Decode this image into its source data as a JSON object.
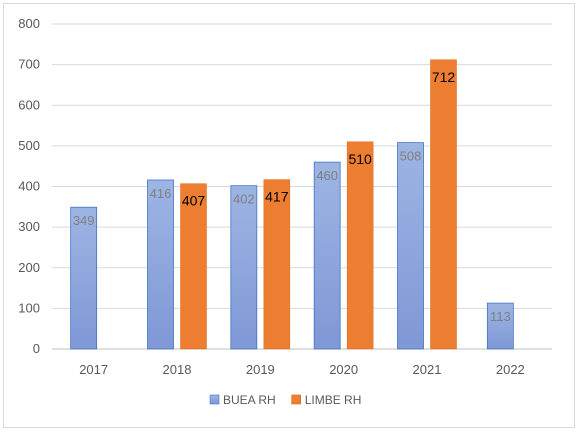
{
  "chart_data": {
    "type": "bar",
    "categories": [
      "2017",
      "2018",
      "2019",
      "2020",
      "2021",
      "2022"
    ],
    "series": [
      {
        "name": "BUEA RH",
        "values": [
          349,
          416,
          402,
          460,
          508,
          113
        ],
        "color": "#8faadc"
      },
      {
        "name": "LIMBE RH",
        "values": [
          null,
          407,
          417,
          510,
          712,
          null
        ],
        "color": "#ed7d31"
      }
    ],
    "ylim": [
      0,
      800
    ],
    "yticks": [
      0,
      100,
      200,
      300,
      400,
      500,
      600,
      700,
      800
    ],
    "grid": true,
    "legend": "bottom"
  }
}
